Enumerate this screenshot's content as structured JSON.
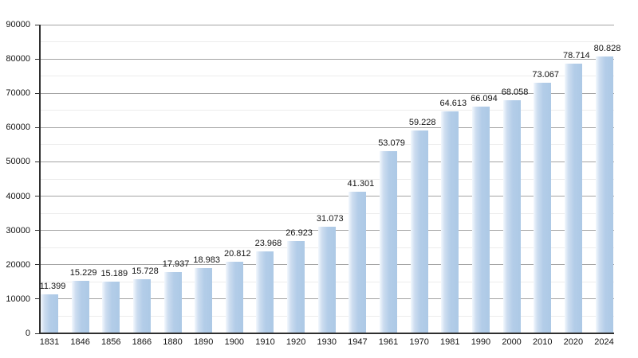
{
  "chart_data": {
    "type": "bar",
    "title": "",
    "xlabel": "",
    "ylabel": "",
    "categories": [
      "1831",
      "1846",
      "1856",
      "1866",
      "1880",
      "1890",
      "1900",
      "1910",
      "1920",
      "1930",
      "1947",
      "1961",
      "1970",
      "1981",
      "1990",
      "2000",
      "2010",
      "2020",
      "2024"
    ],
    "values": [
      11399,
      15229,
      15189,
      15728,
      17937,
      18983,
      20812,
      23968,
      26923,
      31073,
      41301,
      53079,
      59228,
      64613,
      66094,
      68058,
      73067,
      78714,
      80828
    ],
    "value_labels": [
      "11.399",
      "15.229",
      "15.189",
      "15.728",
      "17.937",
      "18.983",
      "20.812",
      "23.968",
      "26.923",
      "31.073",
      "41.301",
      "53.079",
      "59.228",
      "64.613",
      "66.094",
      "68.058",
      "73.067",
      "78.714",
      "80.828"
    ],
    "ylim": [
      0,
      90000
    ],
    "y_major_step": 10000,
    "y_minor_step": 5000,
    "y_tick_labels": [
      "0",
      "10000",
      "20000",
      "30000",
      "40000",
      "50000",
      "60000",
      "70000",
      "80000",
      "90000"
    ],
    "grid": "horizontal, major and minor lines",
    "legend_position": "none",
    "colors": {
      "background": "#ffffff",
      "bar_fill": "#b3cde8",
      "bar_fill_mid": "#cdddf0",
      "bar_fill_light": "#f3f8fd",
      "bar_fill_right": "#adc9e6",
      "grid_major": "#a3a3a3",
      "grid_minor": "#ececec",
      "axis": "#2f2f2f",
      "text": "#141414"
    }
  }
}
